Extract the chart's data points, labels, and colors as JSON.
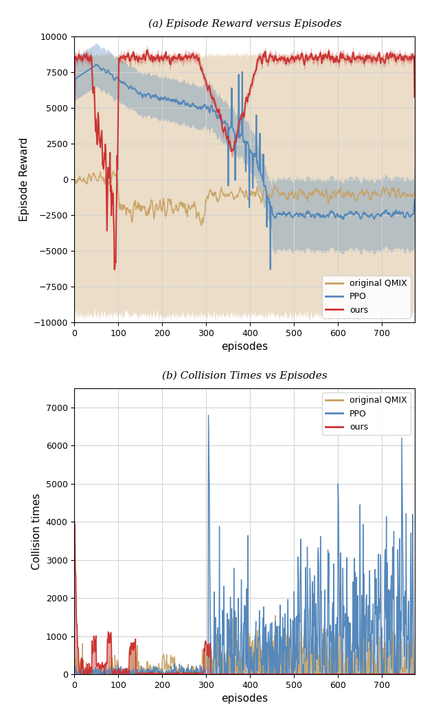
{
  "fig_width": 6.32,
  "fig_height": 10.52,
  "dpi": 100,
  "subplot_a": {
    "title": "(a) Episode Reward versus Episodes",
    "xlabel": "episodes",
    "ylabel": "Episode Reward",
    "ylim": [
      -10000,
      10000
    ],
    "xlim": [
      0,
      775
    ],
    "yticks": [
      -10000,
      -7500,
      -5000,
      -2500,
      0,
      2500,
      5000,
      7500,
      10000
    ],
    "xticks": [
      0,
      100,
      200,
      300,
      400,
      500,
      600,
      700
    ],
    "legend_entries": [
      "original QMIX",
      "PPO",
      "ours"
    ],
    "colors": {
      "qmix": "#c8a060",
      "ppo": "#5588bb",
      "ours": "#cc3333"
    },
    "alpha_fill": 0.35
  },
  "subplot_b": {
    "title": "(b) Collision Times vs Episodes",
    "xlabel": "episodes",
    "ylabel": "Collision times",
    "ylim": [
      0,
      7500
    ],
    "xlim": [
      0,
      775
    ],
    "yticks": [
      0,
      1000,
      2000,
      3000,
      4000,
      5000,
      6000,
      7000
    ],
    "xticks": [
      0,
      100,
      200,
      300,
      400,
      500,
      600,
      700
    ],
    "legend_entries": [
      "original QMIX",
      "PPO",
      "ours"
    ],
    "colors": {
      "qmix": "#c8a060",
      "ppo": "#5588bb",
      "ours": "#cc3333"
    },
    "alpha_fill": 0.35
  },
  "seed": 42
}
